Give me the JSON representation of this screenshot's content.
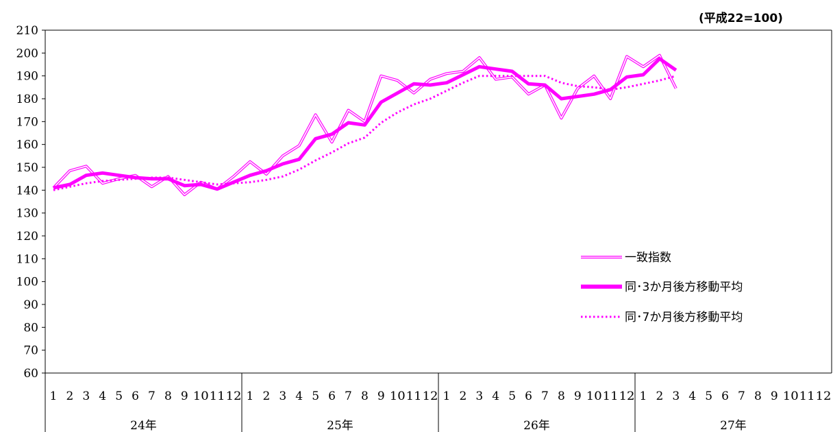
{
  "unit_label": "(平成22=100)",
  "colors": {
    "series": "#FF00FF",
    "axis": "#000000"
  },
  "chart_data": {
    "type": "line",
    "ylim": [
      60,
      210
    ],
    "yticks": [
      60,
      70,
      80,
      90,
      100,
      110,
      120,
      130,
      140,
      150,
      160,
      170,
      180,
      190,
      200,
      210
    ],
    "years": [
      "24年",
      "25年",
      "26年",
      "27年"
    ],
    "months": [
      "1",
      "2",
      "3",
      "4",
      "5",
      "6",
      "7",
      "8",
      "9",
      "10",
      "11",
      "12"
    ],
    "legend": [
      "一致指数",
      "同･3か月後方移動平均",
      "同･7か月後方移動平均"
    ],
    "legend_position": "bottom-right",
    "grid": false,
    "series": [
      {
        "name": "一致指数",
        "style": "double",
        "values": [
          141,
          148.5,
          150.5,
          143,
          145,
          146.5,
          141.5,
          146,
          138,
          143.5,
          140.5,
          146,
          152.5,
          147,
          155,
          159.5,
          173,
          161,
          175,
          170,
          190,
          188,
          182.5,
          188.5,
          191,
          192,
          198,
          188.5,
          189.5,
          182,
          186,
          171.5,
          184.5,
          190,
          180,
          198.5,
          194,
          199,
          184.5
        ]
      },
      {
        "name": "同･3か月後方移動平均",
        "style": "thick",
        "values": [
          141,
          142.5,
          146.5,
          147.5,
          146.5,
          145.5,
          145,
          145,
          142,
          142.5,
          140.5,
          143.5,
          146.5,
          148.5,
          151.5,
          153.5,
          162.5,
          164.5,
          169.5,
          168.5,
          178.5,
          182.5,
          186.5,
          186,
          187,
          190.5,
          194,
          193,
          192,
          186.5,
          186,
          180,
          181,
          182,
          184,
          189.5,
          190.5,
          197.5,
          192.5
        ]
      },
      {
        "name": "同･7か月後方移動平均",
        "style": "dotted",
        "values": [
          140,
          141.5,
          143,
          144,
          144.5,
          145,
          145.5,
          145.5,
          144.5,
          143.5,
          142.5,
          143,
          143.5,
          144.5,
          146,
          149,
          153,
          156.5,
          160.5,
          163,
          169.5,
          174,
          177.5,
          180,
          183.5,
          187,
          190,
          190,
          190,
          190,
          190,
          187,
          185.5,
          185,
          184,
          185,
          186.5,
          188,
          190
        ]
      }
    ]
  }
}
